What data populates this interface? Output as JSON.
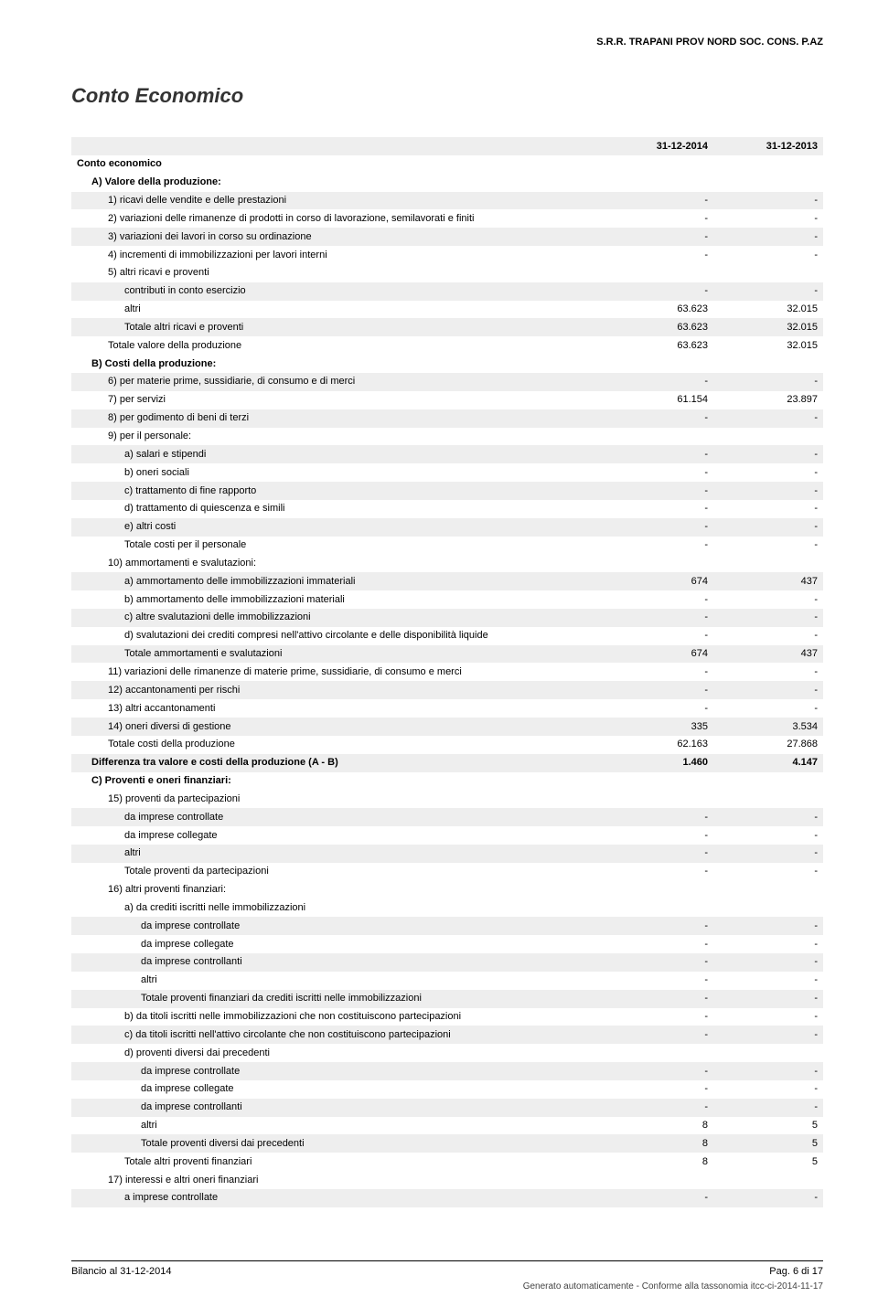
{
  "header": {
    "company_name": "S.R.R. TRAPANI PROV NORD SOC. CONS. P.AZ"
  },
  "title": "Conto Economico",
  "columns": {
    "col1": "31-12-2014",
    "col2": "31-12-2013"
  },
  "rows": [
    {
      "label": "Conto economico",
      "v1": "",
      "v2": "",
      "indent": 0,
      "bold": true,
      "section": true
    },
    {
      "label": "A) Valore della produzione:",
      "v1": "",
      "v2": "",
      "indent": 1,
      "bold": true
    },
    {
      "label": "1) ricavi delle vendite e delle prestazioni",
      "v1": "-",
      "v2": "-",
      "indent": 2,
      "stripe": true
    },
    {
      "label": "2) variazioni delle rimanenze di prodotti in corso di lavorazione, semilavorati e finiti",
      "v1": "-",
      "v2": "-",
      "indent": 2
    },
    {
      "label": "3) variazioni dei lavori in corso su ordinazione",
      "v1": "-",
      "v2": "-",
      "indent": 2,
      "stripe": true
    },
    {
      "label": "4) incrementi di immobilizzazioni per lavori interni",
      "v1": "-",
      "v2": "-",
      "indent": 2
    },
    {
      "label": "5) altri ricavi e proventi",
      "v1": "",
      "v2": "",
      "indent": 2
    },
    {
      "label": "contributi in conto esercizio",
      "v1": "-",
      "v2": "-",
      "indent": 3,
      "stripe": true
    },
    {
      "label": "altri",
      "v1": "63.623",
      "v2": "32.015",
      "indent": 3
    },
    {
      "label": "Totale altri ricavi e proventi",
      "v1": "63.623",
      "v2": "32.015",
      "indent": 3,
      "stripe": true
    },
    {
      "label": "Totale valore della produzione",
      "v1": "63.623",
      "v2": "32.015",
      "indent": 2
    },
    {
      "label": "B) Costi della produzione:",
      "v1": "",
      "v2": "",
      "indent": 1,
      "bold": true
    },
    {
      "label": "6) per materie prime, sussidiarie, di consumo e di merci",
      "v1": "-",
      "v2": "-",
      "indent": 2,
      "stripe": true
    },
    {
      "label": "7) per servizi",
      "v1": "61.154",
      "v2": "23.897",
      "indent": 2
    },
    {
      "label": "8) per godimento di beni di terzi",
      "v1": "-",
      "v2": "-",
      "indent": 2,
      "stripe": true
    },
    {
      "label": "9) per il personale:",
      "v1": "",
      "v2": "",
      "indent": 2
    },
    {
      "label": "a) salari e stipendi",
      "v1": "-",
      "v2": "-",
      "indent": 3,
      "stripe": true
    },
    {
      "label": "b) oneri sociali",
      "v1": "-",
      "v2": "-",
      "indent": 3
    },
    {
      "label": "c) trattamento di fine rapporto",
      "v1": "-",
      "v2": "-",
      "indent": 3,
      "stripe": true
    },
    {
      "label": "d) trattamento di quiescenza e simili",
      "v1": "-",
      "v2": "-",
      "indent": 3
    },
    {
      "label": "e) altri costi",
      "v1": "-",
      "v2": "-",
      "indent": 3,
      "stripe": true
    },
    {
      "label": "Totale costi per il personale",
      "v1": "-",
      "v2": "-",
      "indent": 3
    },
    {
      "label": "10) ammortamenti e svalutazioni:",
      "v1": "",
      "v2": "",
      "indent": 2
    },
    {
      "label": "a) ammortamento delle immobilizzazioni immateriali",
      "v1": "674",
      "v2": "437",
      "indent": 3,
      "stripe": true
    },
    {
      "label": "b) ammortamento delle immobilizzazioni materiali",
      "v1": "-",
      "v2": "-",
      "indent": 3
    },
    {
      "label": "c) altre svalutazioni delle immobilizzazioni",
      "v1": "-",
      "v2": "-",
      "indent": 3,
      "stripe": true
    },
    {
      "label": "d) svalutazioni dei crediti compresi nell'attivo circolante e delle disponibilità liquide",
      "v1": "-",
      "v2": "-",
      "indent": 3
    },
    {
      "label": "Totale ammortamenti e svalutazioni",
      "v1": "674",
      "v2": "437",
      "indent": 3,
      "stripe": true
    },
    {
      "label": "11) variazioni delle rimanenze di materie prime, sussidiarie, di consumo e merci",
      "v1": "-",
      "v2": "-",
      "indent": 2
    },
    {
      "label": "12) accantonamenti per rischi",
      "v1": "-",
      "v2": "-",
      "indent": 2,
      "stripe": true
    },
    {
      "label": "13) altri accantonamenti",
      "v1": "-",
      "v2": "-",
      "indent": 2
    },
    {
      "label": "14) oneri diversi di gestione",
      "v1": "335",
      "v2": "3.534",
      "indent": 2,
      "stripe": true
    },
    {
      "label": "Totale costi della produzione",
      "v1": "62.163",
      "v2": "27.868",
      "indent": 2
    },
    {
      "label": "Differenza tra valore e costi della produzione (A - B)",
      "v1": "1.460",
      "v2": "4.147",
      "indent": 1,
      "bold": true,
      "stripe": true
    },
    {
      "label": "C) Proventi e oneri finanziari:",
      "v1": "",
      "v2": "",
      "indent": 1,
      "bold": true
    },
    {
      "label": "15) proventi da partecipazioni",
      "v1": "",
      "v2": "",
      "indent": 2
    },
    {
      "label": "da imprese controllate",
      "v1": "-",
      "v2": "-",
      "indent": 3,
      "stripe": true
    },
    {
      "label": "da imprese collegate",
      "v1": "-",
      "v2": "-",
      "indent": 3
    },
    {
      "label": "altri",
      "v1": "-",
      "v2": "-",
      "indent": 3,
      "stripe": true
    },
    {
      "label": "Totale proventi da partecipazioni",
      "v1": "-",
      "v2": "-",
      "indent": 3
    },
    {
      "label": "16) altri proventi finanziari:",
      "v1": "",
      "v2": "",
      "indent": 2
    },
    {
      "label": "a) da crediti iscritti nelle immobilizzazioni",
      "v1": "",
      "v2": "",
      "indent": 3
    },
    {
      "label": "da imprese controllate",
      "v1": "-",
      "v2": "-",
      "indent": 4,
      "stripe": true
    },
    {
      "label": "da imprese collegate",
      "v1": "-",
      "v2": "-",
      "indent": 4
    },
    {
      "label": "da imprese controllanti",
      "v1": "-",
      "v2": "-",
      "indent": 4,
      "stripe": true
    },
    {
      "label": "altri",
      "v1": "-",
      "v2": "-",
      "indent": 4
    },
    {
      "label": "Totale proventi finanziari da crediti iscritti nelle immobilizzazioni",
      "v1": "-",
      "v2": "-",
      "indent": 4,
      "stripe": true
    },
    {
      "label": "b) da titoli iscritti nelle immobilizzazioni che non costituiscono partecipazioni",
      "v1": "-",
      "v2": "-",
      "indent": 3
    },
    {
      "label": "c) da titoli iscritti nell'attivo circolante che non costituiscono partecipazioni",
      "v1": "-",
      "v2": "-",
      "indent": 3,
      "stripe": true
    },
    {
      "label": "d) proventi diversi dai precedenti",
      "v1": "",
      "v2": "",
      "indent": 3
    },
    {
      "label": "da imprese controllate",
      "v1": "-",
      "v2": "-",
      "indent": 4,
      "stripe": true
    },
    {
      "label": "da imprese collegate",
      "v1": "-",
      "v2": "-",
      "indent": 4
    },
    {
      "label": "da imprese controllanti",
      "v1": "-",
      "v2": "-",
      "indent": 4,
      "stripe": true
    },
    {
      "label": "altri",
      "v1": "8",
      "v2": "5",
      "indent": 4
    },
    {
      "label": "Totale proventi diversi dai precedenti",
      "v1": "8",
      "v2": "5",
      "indent": 4,
      "stripe": true
    },
    {
      "label": "Totale altri proventi finanziari",
      "v1": "8",
      "v2": "5",
      "indent": 3
    },
    {
      "label": "17) interessi e altri oneri finanziari",
      "v1": "",
      "v2": "",
      "indent": 2
    },
    {
      "label": "a imprese controllate",
      "v1": "-",
      "v2": "-",
      "indent": 3,
      "stripe": true
    }
  ],
  "footer": {
    "left": "Bilancio al 31-12-2014",
    "right": "Pag. 6 di 17",
    "generated": "Generato automaticamente - Conforme alla tassonomia itcc-ci-2014-11-17"
  }
}
